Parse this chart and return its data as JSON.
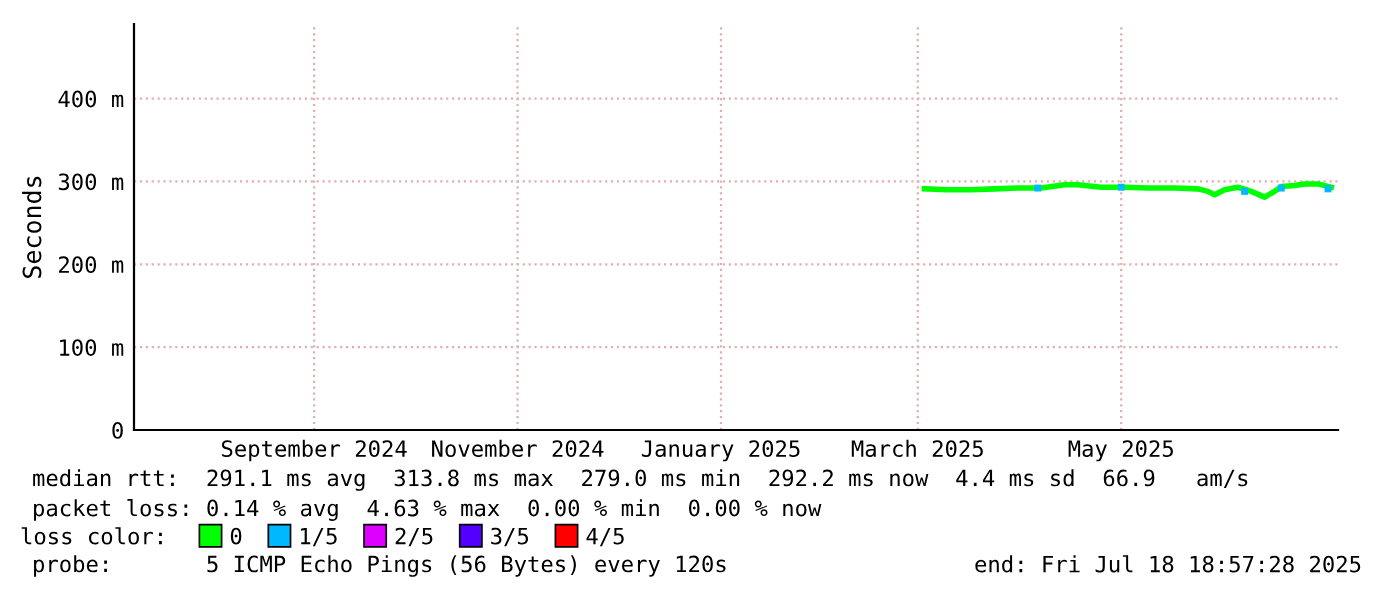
{
  "chart_data": {
    "type": "line",
    "ylabel": "Seconds",
    "x": [
      "2025-03-18",
      "2025-03-25",
      "2025-04-01",
      "2025-04-08",
      "2025-04-15",
      "2025-04-22",
      "2025-04-29",
      "2025-05-03",
      "2025-05-10",
      "2025-05-17",
      "2025-05-24",
      "2025-06-01",
      "2025-06-08",
      "2025-06-11",
      "2025-06-13",
      "2025-06-16",
      "2025-06-20",
      "2025-06-24",
      "2025-06-28",
      "2025-07-01",
      "2025-07-03",
      "2025-07-07",
      "2025-07-10",
      "2025-07-14",
      "2025-07-18"
    ],
    "series": [
      {
        "name": "0",
        "color": "#00ff00",
        "values": [
          291,
          290,
          290,
          291,
          292,
          292,
          296,
          296,
          293,
          293,
          292,
          292,
          291,
          288,
          284,
          290,
          293,
          288,
          281,
          288,
          294,
          295,
          297,
          297,
          293
        ]
      },
      {
        "name": "1/5",
        "color": "#00b8ff",
        "type": "scatter",
        "marker": "square",
        "x": [
          "2025-04-21",
          "2025-05-16",
          "2025-06-22",
          "2025-07-03",
          "2025-07-17"
        ],
        "values": [
          292,
          293,
          288,
          292,
          291
        ]
      },
      {
        "name": "2/5",
        "color": "#dd00ff",
        "type": "scatter",
        "marker": "square",
        "values": [
          null,
          null,
          null,
          null,
          null,
          null,
          null,
          null,
          null,
          null,
          null,
          null,
          null,
          null,
          null,
          null,
          null,
          null,
          null,
          null,
          null,
          null,
          null,
          null,
          null
        ]
      },
      {
        "name": "3/5",
        "color": "#5500ff",
        "type": "scatter",
        "marker": "square",
        "values": [
          null,
          null,
          null,
          null,
          null,
          null,
          null,
          null,
          null,
          null,
          null,
          null,
          null,
          null,
          null,
          null,
          null,
          null,
          null,
          null,
          null,
          null,
          null,
          null,
          null
        ]
      },
      {
        "name": "4/5",
        "color": "#ff0000",
        "type": "scatter",
        "marker": "square",
        "values": [
          null,
          null,
          null,
          null,
          null,
          null,
          null,
          null,
          null,
          null,
          null,
          null,
          null,
          null,
          null,
          null,
          null,
          null,
          null,
          null,
          null,
          null,
          null,
          null,
          null
        ]
      }
    ],
    "xlim": [
      "2024-07-24",
      "2025-07-20"
    ],
    "xticks": [
      {
        "value": "2024-09-16",
        "label": "September 2024"
      },
      {
        "value": "2024-11-16",
        "label": "November 2024"
      },
      {
        "value": "2025-01-16",
        "label": "January 2025"
      },
      {
        "value": "2025-03-16",
        "label": "March 2025"
      },
      {
        "value": "2025-05-16",
        "label": "May 2025"
      }
    ],
    "ylim": [
      0,
      490
    ],
    "yticks": [
      0,
      {
        "value": 100,
        "label": "100 m"
      },
      {
        "value": 200,
        "label": "200 m"
      },
      {
        "value": 300,
        "label": "300 m"
      },
      {
        "value": 400,
        "label": "400 m"
      }
    ],
    "grid": true,
    "legend": "bottom",
    "legend_title": "loss color:",
    "annotations": [
      "median rtt:  291.1 ms avg  313.8 ms max  279.0 ms min  292.2 ms now  4.4 ms sd  66.9   am/s",
      "packet loss: 0.14 % avg  4.63 % max  0.00 % min  0.00 % now",
      "probe:       5 ICMP Echo Pings (56 Bytes) every 120s",
      "end: Fri Jul 18 18:57:28 2025"
    ]
  }
}
